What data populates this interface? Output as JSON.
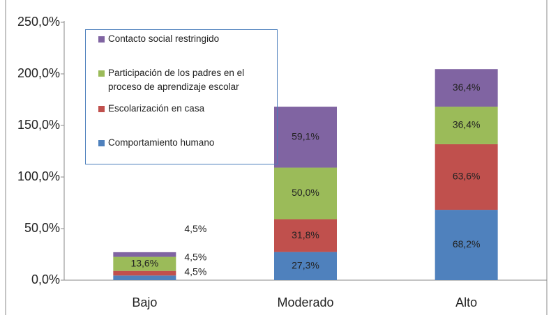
{
  "chart_data": {
    "type": "stacked_bar",
    "categories": [
      "Bajo",
      "Moderado",
      "Alto"
    ],
    "series": [
      {
        "name": "Comportamiento humano",
        "color": "#4f81bd",
        "values": [
          4.5,
          27.3,
          68.2
        ],
        "value_labels": [
          "4,5%",
          "27,3%",
          "68,2%"
        ]
      },
      {
        "name": "Escolarización en casa",
        "color": "#c0504d",
        "values": [
          4.5,
          31.8,
          63.6
        ],
        "value_labels": [
          "4,5%",
          "31,8%",
          "63,6%"
        ]
      },
      {
        "name": "Participación de los padres en el proceso de aprendizaje escolar",
        "color": "#9bbb59",
        "values": [
          13.6,
          50.0,
          36.4
        ],
        "value_labels": [
          "13,6%",
          "50,0%",
          "36,4%"
        ]
      },
      {
        "name": "Contacto social restringido",
        "color": "#8064a2",
        "values": [
          4.5,
          59.1,
          36.4
        ],
        "value_labels": [
          "4,5%",
          "59,1%",
          "36,4%"
        ]
      }
    ],
    "ylim": [
      0,
      250
    ],
    "yticks": [
      {
        "value": 0,
        "label": "0,0%"
      },
      {
        "value": 50,
        "label": "50,0%"
      },
      {
        "value": 100,
        "label": "100,0%"
      },
      {
        "value": 150,
        "label": "150,0%"
      },
      {
        "value": 200,
        "label": "200,0%"
      },
      {
        "value": 250,
        "label": "250,0%"
      }
    ]
  }
}
